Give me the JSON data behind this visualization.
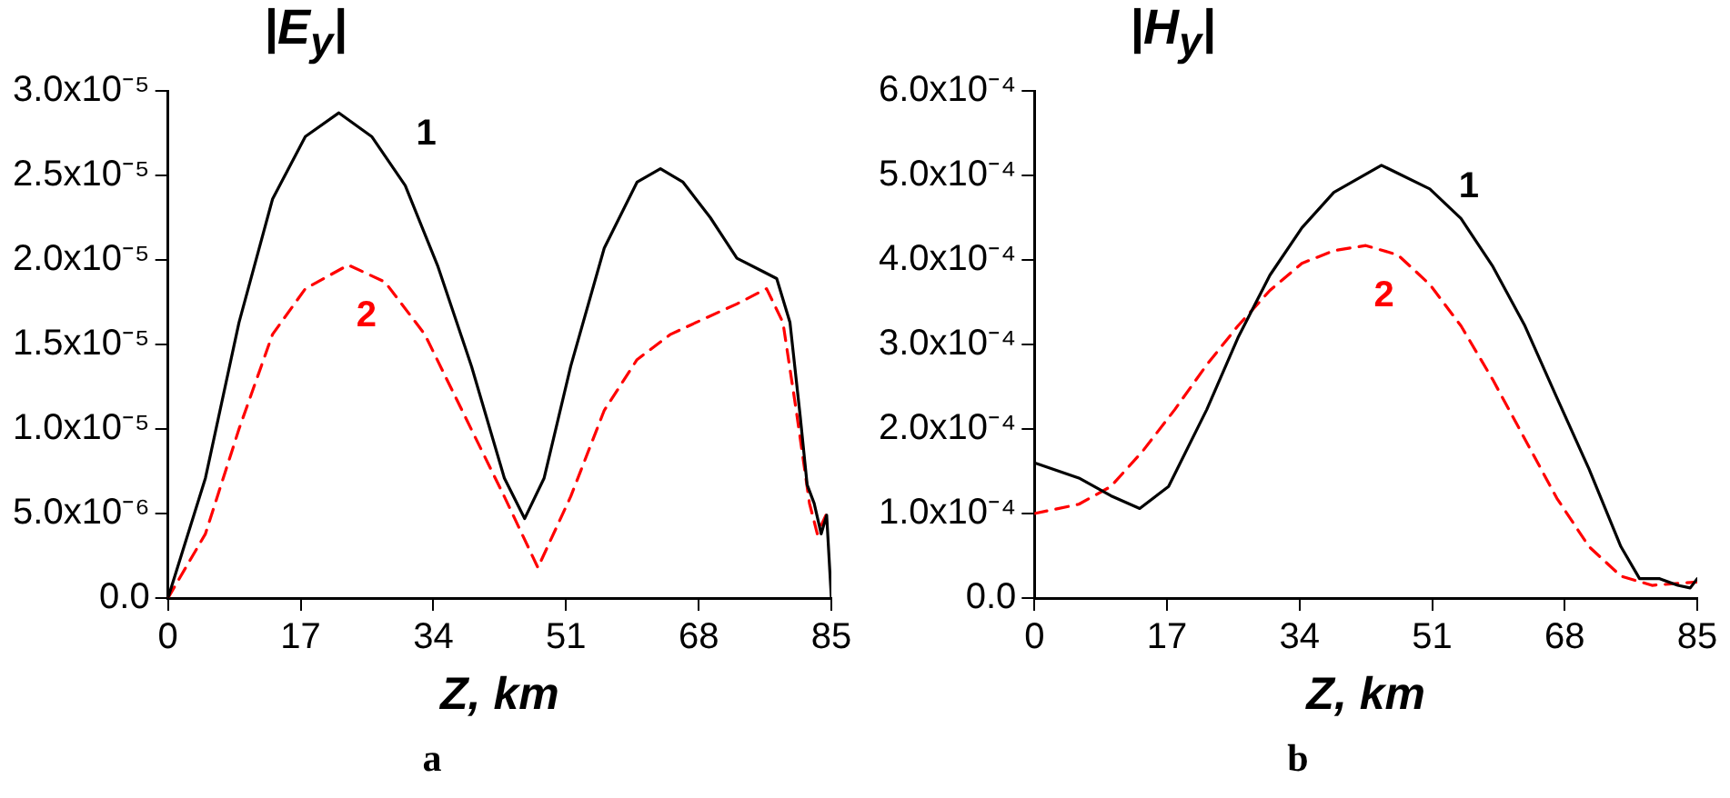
{
  "chart_data": [
    {
      "type": "line",
      "title": "|E$_{y}$|",
      "xlabel": "Z, km",
      "annotations": [
        "a"
      ],
      "xlim": [
        0,
        85
      ],
      "xticks": [
        0,
        17,
        34,
        51,
        68,
        85
      ],
      "ylim": [
        0,
        3e-05
      ],
      "yticks": [
        {
          "value": 0,
          "label": "0.0"
        },
        {
          "value": 5e-06,
          "label": "5.0x10⁻⁶"
        },
        {
          "value": 1e-05,
          "label": "1.0x10⁻⁵"
        },
        {
          "value": 1.5e-05,
          "label": "1.5x10⁻⁵"
        },
        {
          "value": 2e-05,
          "label": "2.0x10⁻⁵"
        },
        {
          "value": 2.5e-05,
          "label": "2.5x10⁻⁵"
        },
        {
          "value": 3e-05,
          "label": "3.0x10⁻⁵"
        }
      ],
      "grid": false,
      "legend": false,
      "marker": "none",
      "series": [
        {
          "name": "1",
          "color": "#000000",
          "line_style": "solid",
          "x": [
            0,
            4.8,
            9.1,
            13.4,
            17.6,
            21.9,
            26.1,
            30.4,
            34.6,
            38.9,
            43.1,
            45.7,
            48.2,
            51.6,
            55.9,
            60.1,
            63.1,
            66,
            69.5,
            72.9,
            76.3,
            78,
            79.7,
            81,
            81.9,
            82.8,
            83.7,
            84.4,
            85
          ],
          "values": [
            0,
            7.1e-06,
            1.63e-05,
            2.36e-05,
            2.73e-05,
            2.87e-05,
            2.73e-05,
            2.44e-05,
            1.96e-05,
            1.37e-05,
            7.1e-06,
            4.7e-06,
            7.1e-06,
            1.37e-05,
            2.07e-05,
            2.46e-05,
            2.54e-05,
            2.46e-05,
            2.25e-05,
            2.01e-05,
            1.93e-05,
            1.89e-05,
            1.63e-05,
            1.08e-05,
            6.7e-06,
            5.6e-06,
            3.8e-06,
            4.9e-06,
            0
          ]
        },
        {
          "name": "2",
          "color": "#ff0000",
          "line_style": "dashed",
          "x": [
            0,
            4.8,
            9.1,
            13.4,
            17.6,
            23.1,
            27.8,
            32.9,
            38,
            43.1,
            47.4,
            51.6,
            55.9,
            60.1,
            64.4,
            68.6,
            72.9,
            76.7,
            78.8,
            80.5,
            82.2,
            83.2,
            84.3
          ],
          "values": [
            0,
            3.8e-06,
            1e-05,
            1.56e-05,
            1.83e-05,
            1.97e-05,
            1.87e-05,
            1.56e-05,
            1.08e-05,
            6e-06,
            1.8e-06,
            6e-06,
            1.11e-05,
            1.41e-05,
            1.56e-05,
            1.65e-05,
            1.74e-05,
            1.83e-05,
            1.63e-05,
            1.11e-05,
            5.6e-06,
            3.8e-06,
            4.9e-06
          ]
        }
      ]
    },
    {
      "type": "line",
      "title": "|H$_{y}$|",
      "xlabel": "Z, km",
      "annotations": [
        "b"
      ],
      "xlim": [
        0,
        85
      ],
      "xticks": [
        0,
        17,
        34,
        51,
        68,
        85
      ],
      "ylim": [
        0,
        0.0006
      ],
      "yticks": [
        {
          "value": 0,
          "label": "0.0"
        },
        {
          "value": 0.0001,
          "label": "1.0x10⁻⁴"
        },
        {
          "value": 0.0002,
          "label": "2.0x10⁻⁴"
        },
        {
          "value": 0.0003,
          "label": "3.0x10⁻⁴"
        },
        {
          "value": 0.0004,
          "label": "4.0x10⁻⁴"
        },
        {
          "value": 0.0005,
          "label": "5.0x10⁻⁴"
        },
        {
          "value": 0.0006,
          "label": "6.0x10⁻⁴"
        }
      ],
      "grid": false,
      "legend": false,
      "marker": "none",
      "series": [
        {
          "name": "1",
          "color": "#000000",
          "line_style": "solid",
          "x": [
            0,
            5.7,
            9.8,
            13.5,
            17.2,
            22.1,
            26.1,
            30.2,
            34.3,
            38.4,
            44.5,
            50.7,
            54.7,
            58.8,
            62.9,
            67,
            71.1,
            75.2,
            77.6,
            80.1,
            82.5,
            84.1,
            85
          ],
          "values": [
            0.00016,
            0.000142,
            0.000121,
            0.000106,
            0.000132,
            0.000223,
            0.000308,
            0.000382,
            0.000438,
            0.00048,
            0.000512,
            0.000484,
            0.000449,
            0.000392,
            0.000322,
            0.000237,
            0.000153,
            6.1e-05,
            2.3e-05,
            2.3e-05,
            1.5e-05,
            1.2e-05,
            2.3e-05
          ]
        },
        {
          "name": "2",
          "color": "#ff0000",
          "line_style": "dashed",
          "x": [
            0,
            5.7,
            9.8,
            13.9,
            18,
            22.1,
            26.1,
            30.2,
            34.3,
            38.4,
            42.5,
            46.6,
            50.7,
            54.7,
            58.8,
            62.9,
            67,
            71.1,
            75.2,
            79.2,
            85
          ],
          "values": [
            0.0001,
            0.000111,
            0.000132,
            0.000174,
            0.000223,
            0.000276,
            0.000322,
            0.000364,
            0.000396,
            0.000411,
            0.000417,
            0.000406,
            0.000371,
            0.000322,
            0.000258,
            0.000188,
            0.000118,
            6.1e-05,
            2.6e-05,
            1.5e-05,
            1.9e-05
          ]
        }
      ]
    }
  ]
}
